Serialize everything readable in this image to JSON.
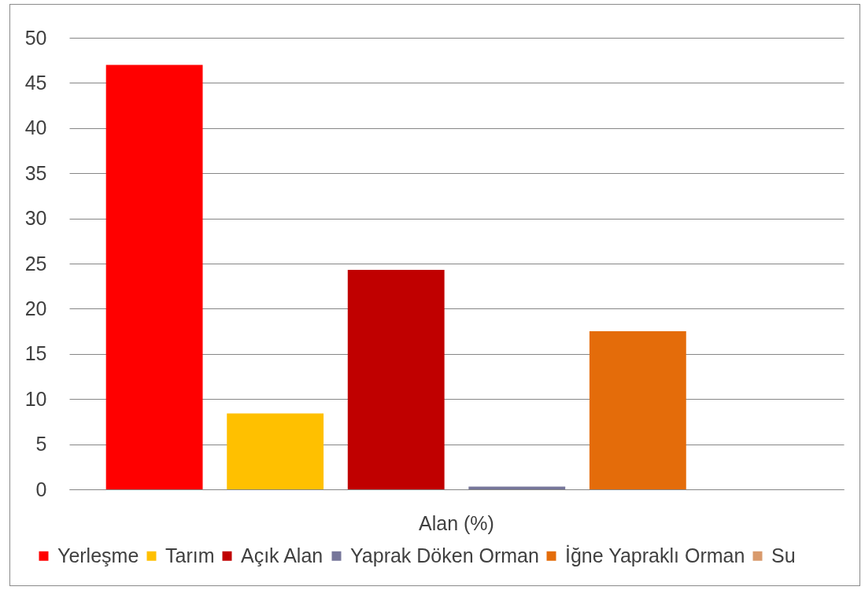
{
  "chart_data": {
    "type": "bar",
    "categories": [
      "Alan (%)"
    ],
    "series": [
      {
        "name": "Yerleşme",
        "color": "#ff0000",
        "values": [
          47
        ]
      },
      {
        "name": "Tarım",
        "color": "#ffc000",
        "values": [
          8.4
        ]
      },
      {
        "name": "Açık Alan",
        "color": "#c00000",
        "values": [
          24.3
        ]
      },
      {
        "name": "Yaprak Döken Orman",
        "color": "#76769a",
        "values": [
          0.3
        ]
      },
      {
        "name": "İğne Yapraklı Orman",
        "color": "#e46c0a",
        "values": [
          17.5
        ]
      },
      {
        "name": "Su",
        "color": "#d99a6c",
        "values": [
          0
        ]
      }
    ],
    "ylim": [
      0,
      50
    ],
    "yticks": [
      0,
      5,
      10,
      15,
      20,
      25,
      30,
      35,
      40,
      45,
      50
    ],
    "grid": "y",
    "legend": "bottom"
  }
}
